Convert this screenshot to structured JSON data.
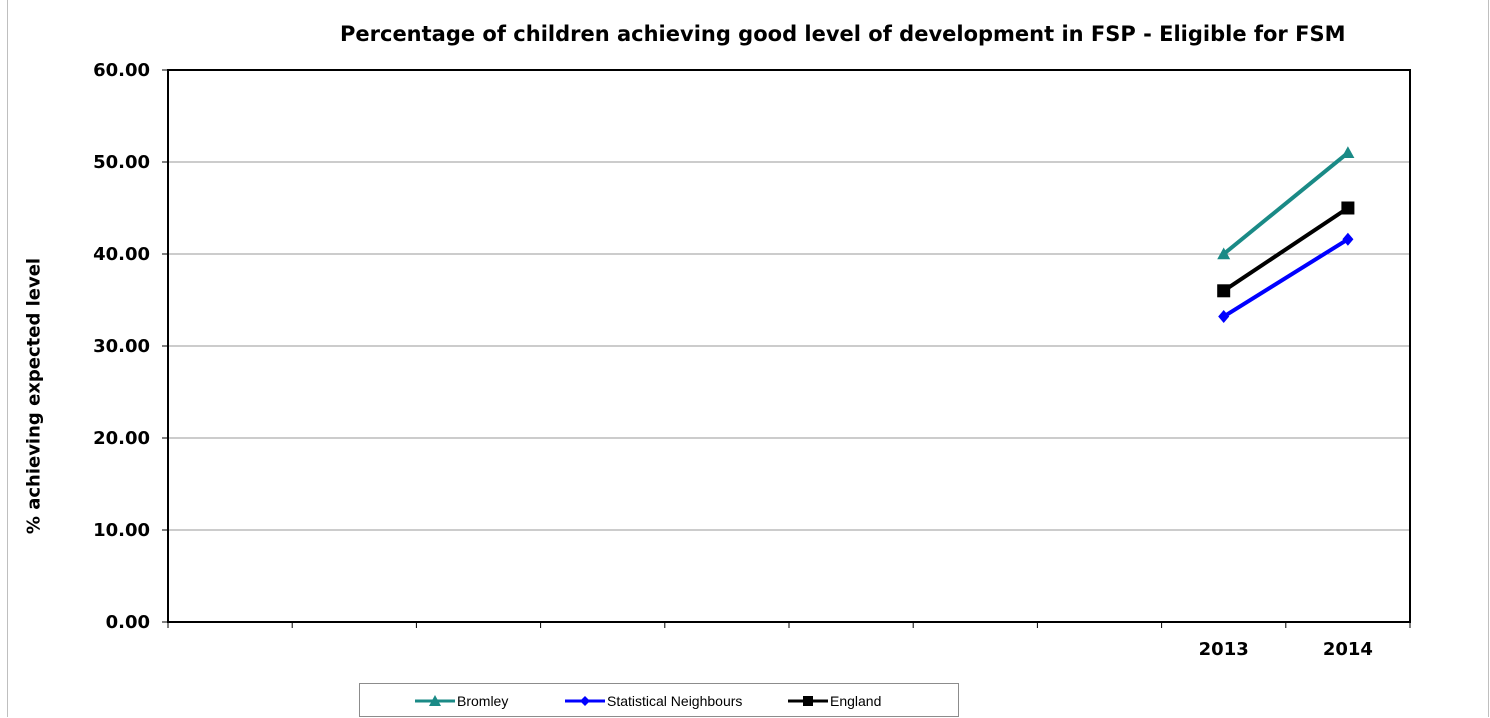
{
  "chart_data": {
    "type": "line",
    "title": "Percentage of children achieving good level of development in FSP - Eligible for FSM",
    "xlabel": "",
    "ylabel": "% achieving expected level",
    "categories": [
      "",
      "",
      "",
      "",
      "",
      "",
      "",
      "",
      "2013",
      "2014"
    ],
    "ylim": [
      0,
      60
    ],
    "yticks": [
      "0.00",
      "10.00",
      "20.00",
      "30.00",
      "40.00",
      "50.00",
      "60.00"
    ],
    "grid": true,
    "legend_position": "bottom",
    "series": [
      {
        "name": "Bromley",
        "color": "#1a8a86",
        "marker": "triangle",
        "values": [
          null,
          null,
          null,
          null,
          null,
          null,
          null,
          null,
          40.0,
          51.0
        ]
      },
      {
        "name": "Statistical Neighbours",
        "color": "#0000ff",
        "marker": "diamond",
        "values": [
          null,
          null,
          null,
          null,
          null,
          null,
          null,
          null,
          33.2,
          41.6
        ]
      },
      {
        "name": "England",
        "color": "#000000",
        "marker": "square",
        "values": [
          null,
          null,
          null,
          null,
          null,
          null,
          null,
          null,
          36.0,
          45.0
        ]
      }
    ]
  }
}
